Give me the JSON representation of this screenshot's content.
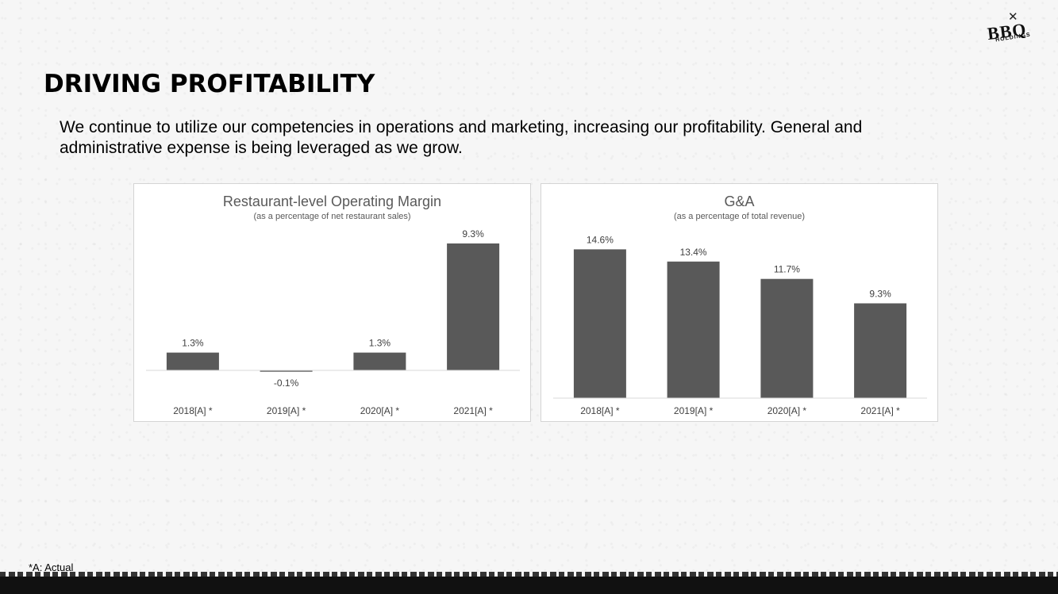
{
  "logo": {
    "main": "BBQ",
    "sub": "HOLDINGS"
  },
  "title": "DRIVING PROFITABILITY",
  "intro": "We continue to utilize our competencies in operations and marketing, increasing our profitability.  General and administrative expense is being leveraged as we grow.",
  "footnote": "*A:  Actual",
  "colors": {
    "bar": "#595959",
    "axis": "#d9d9d9",
    "text": "#595959"
  },
  "chart_data": [
    {
      "type": "bar",
      "title": "Restaurant-level Operating Margin",
      "subtitle": "(as a percentage of net restaurant sales)",
      "categories": [
        "2018[A] *",
        "2019[A] *",
        "2020[A] *",
        "2021[A] *"
      ],
      "values": [
        1.3,
        -0.1,
        1.3,
        9.3
      ],
      "labels": [
        "1.3%",
        "-0.1%",
        "1.3%",
        "9.3%"
      ],
      "unit": "%",
      "grid": false,
      "legend": "none"
    },
    {
      "type": "bar",
      "title": "G&A",
      "subtitle": "(as a percentage of total revenue)",
      "categories": [
        "2018[A]  *",
        "2019[A]  *",
        "2020[A]  *",
        "2021[A]  *"
      ],
      "values": [
        14.6,
        13.4,
        11.7,
        9.3
      ],
      "labels": [
        "14.6%",
        "13.4%",
        "11.7%",
        "9.3%"
      ],
      "unit": "%",
      "grid": false,
      "legend": "none"
    }
  ]
}
